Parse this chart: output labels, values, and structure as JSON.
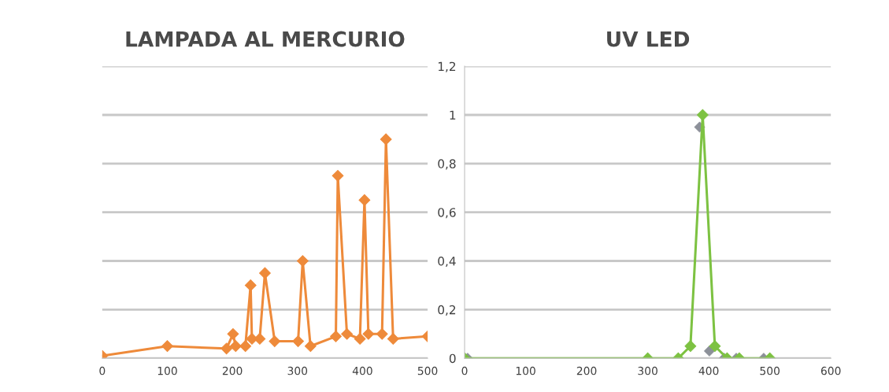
{
  "chart_data": [
    {
      "type": "line",
      "title": "LAMPADA AL MERCURIO",
      "xlim": [
        0,
        500
      ],
      "xticks": [
        0,
        100,
        200,
        300,
        400,
        500
      ],
      "ylim": [
        0,
        1.2
      ],
      "yticks": [
        0,
        0.2,
        0.4,
        0.6,
        0.8,
        1,
        1.2
      ],
      "tick_labels": "x",
      "grid": "y",
      "marker": "diamond",
      "line_style": "solid",
      "series": [
        {
          "color": "#ee8a3a",
          "x": [
            0,
            100,
            191,
            201,
            205,
            220,
            228,
            230,
            242,
            250,
            265,
            301,
            308,
            320,
            359,
            362,
            376,
            396,
            403,
            409,
            430,
            436,
            447,
            500
          ],
          "values": [
            0.01,
            0.05,
            0.04,
            0.1,
            0.05,
            0.05,
            0.3,
            0.08,
            0.08,
            0.35,
            0.07,
            0.07,
            0.4,
            0.05,
            0.09,
            0.75,
            0.1,
            0.08,
            0.65,
            0.1,
            0.1,
            0.9,
            0.08,
            0.09
          ]
        }
      ]
    },
    {
      "type": "line",
      "title": "UV LED",
      "xlim": [
        0,
        600
      ],
      "xticks": [
        0,
        100,
        200,
        300,
        400,
        500,
        600
      ],
      "ylim": [
        0,
        1.2
      ],
      "yticks": [
        0,
        {
          "value": 0.2,
          "label": "0,2"
        },
        {
          "value": 0.4,
          "label": "0,4"
        },
        {
          "value": 0.6,
          "label": "0,6"
        },
        {
          "value": 0.8,
          "label": "0,8"
        },
        1,
        {
          "value": 1.2,
          "label": "1,2"
        }
      ],
      "grid": "y",
      "marker": "diamond",
      "line_style": "solid",
      "series": [
        {
          "type": "scatter",
          "color": "#8c9099",
          "x": [
            5,
            385,
            401,
            425,
            445,
            490
          ],
          "values": [
            0,
            0.95,
            0.03,
            0,
            0,
            0
          ]
        },
        {
          "color": "#7dc242",
          "x": [
            0,
            300,
            350,
            370,
            390,
            410,
            430,
            450,
            500
          ],
          "values": [
            0,
            0,
            0,
            0.05,
            1,
            0.05,
            0,
            0,
            0
          ]
        }
      ]
    }
  ]
}
